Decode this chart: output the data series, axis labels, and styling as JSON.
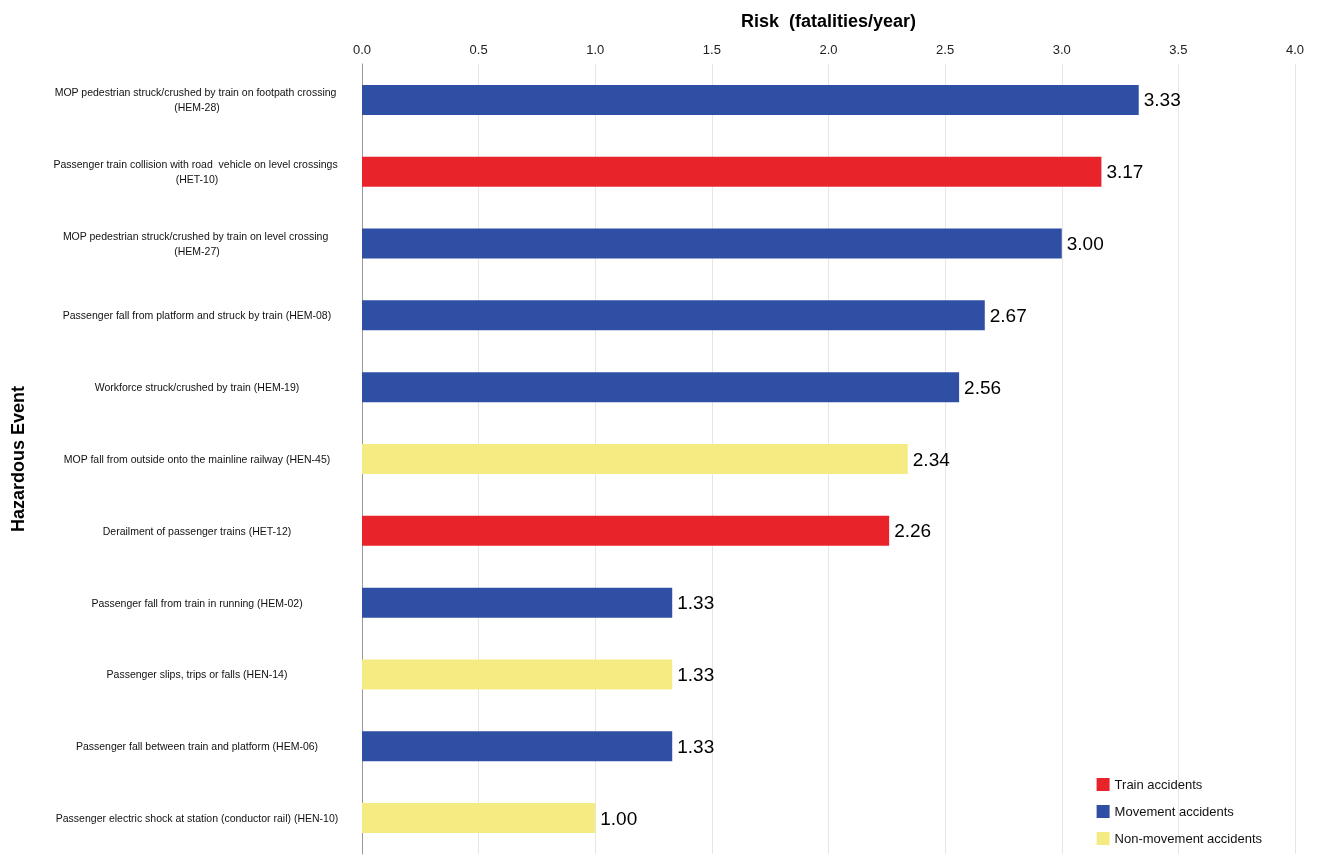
{
  "chart_data": {
    "type": "bar",
    "orientation": "horizontal",
    "xlabel": "Risk  (fatalities/year)",
    "ylabel": "Hazardous Event",
    "categories": [
      "MOP pedestrian struck/crushed by train on footpath crossing (HEM-28)",
      "Passenger train collision with road  vehicle on level crossings (HET-10)",
      "MOP pedestrian struck/crushed by train on level crossing (HEM-27)",
      "Passenger fall from platform and struck by train (HEM-08)",
      "Workforce struck/crushed by train (HEM-19)",
      "MOP fall from outside onto the mainline railway (HEN-45)",
      "Derailment of passenger trains (HET-12)",
      "Passenger fall from train in running (HEM-02)",
      "Passenger slips, trips or falls (HEN-14)",
      "Passenger fall between train and platform (HEM-06)",
      "Passenger electric shock at station (conductor rail) (HEN-10)"
    ],
    "series": [
      {
        "name": "Train accidents",
        "color": "#e8232a",
        "values": [
          null,
          3.17,
          null,
          null,
          null,
          null,
          2.26,
          null,
          null,
          null,
          null
        ],
        "value_labels": [
          null,
          "3.17",
          null,
          null,
          null,
          null,
          "2.26",
          null,
          null,
          null,
          null
        ]
      },
      {
        "name": "Movement accidents",
        "color": "#2e4fa3",
        "values": [
          3.33,
          null,
          3,
          2.67,
          2.56,
          null,
          null,
          1.33,
          null,
          1.33,
          null
        ],
        "value_labels": [
          "3.33",
          null,
          "3.00",
          "2.67",
          "2.56",
          null,
          null,
          "1.33",
          null,
          "1.33",
          null
        ]
      },
      {
        "name": "Non-movement accidents",
        "color": "#f5eb83",
        "values": [
          null,
          null,
          null,
          null,
          null,
          2.34,
          null,
          null,
          1.33,
          null,
          1
        ],
        "value_labels": [
          null,
          null,
          null,
          null,
          null,
          "2.34",
          null,
          null,
          "1.33",
          null,
          "1.00"
        ]
      }
    ],
    "xlim": [
      0,
      4
    ],
    "xticks": [
      {
        "value": 0,
        "label": "0.0"
      },
      {
        "value": 0.5,
        "label": "0.5"
      },
      {
        "value": 1,
        "label": "1.0"
      },
      {
        "value": 1.5,
        "label": "1.5"
      },
      {
        "value": 2,
        "label": "2.0"
      },
      {
        "value": 2.5,
        "label": "2.5"
      },
      {
        "value": 3,
        "label": "3.0"
      },
      {
        "value": 3.5,
        "label": "3.5"
      },
      {
        "value": 4,
        "label": "4.0"
      }
    ],
    "grid": "x",
    "legend": "bottom right"
  }
}
